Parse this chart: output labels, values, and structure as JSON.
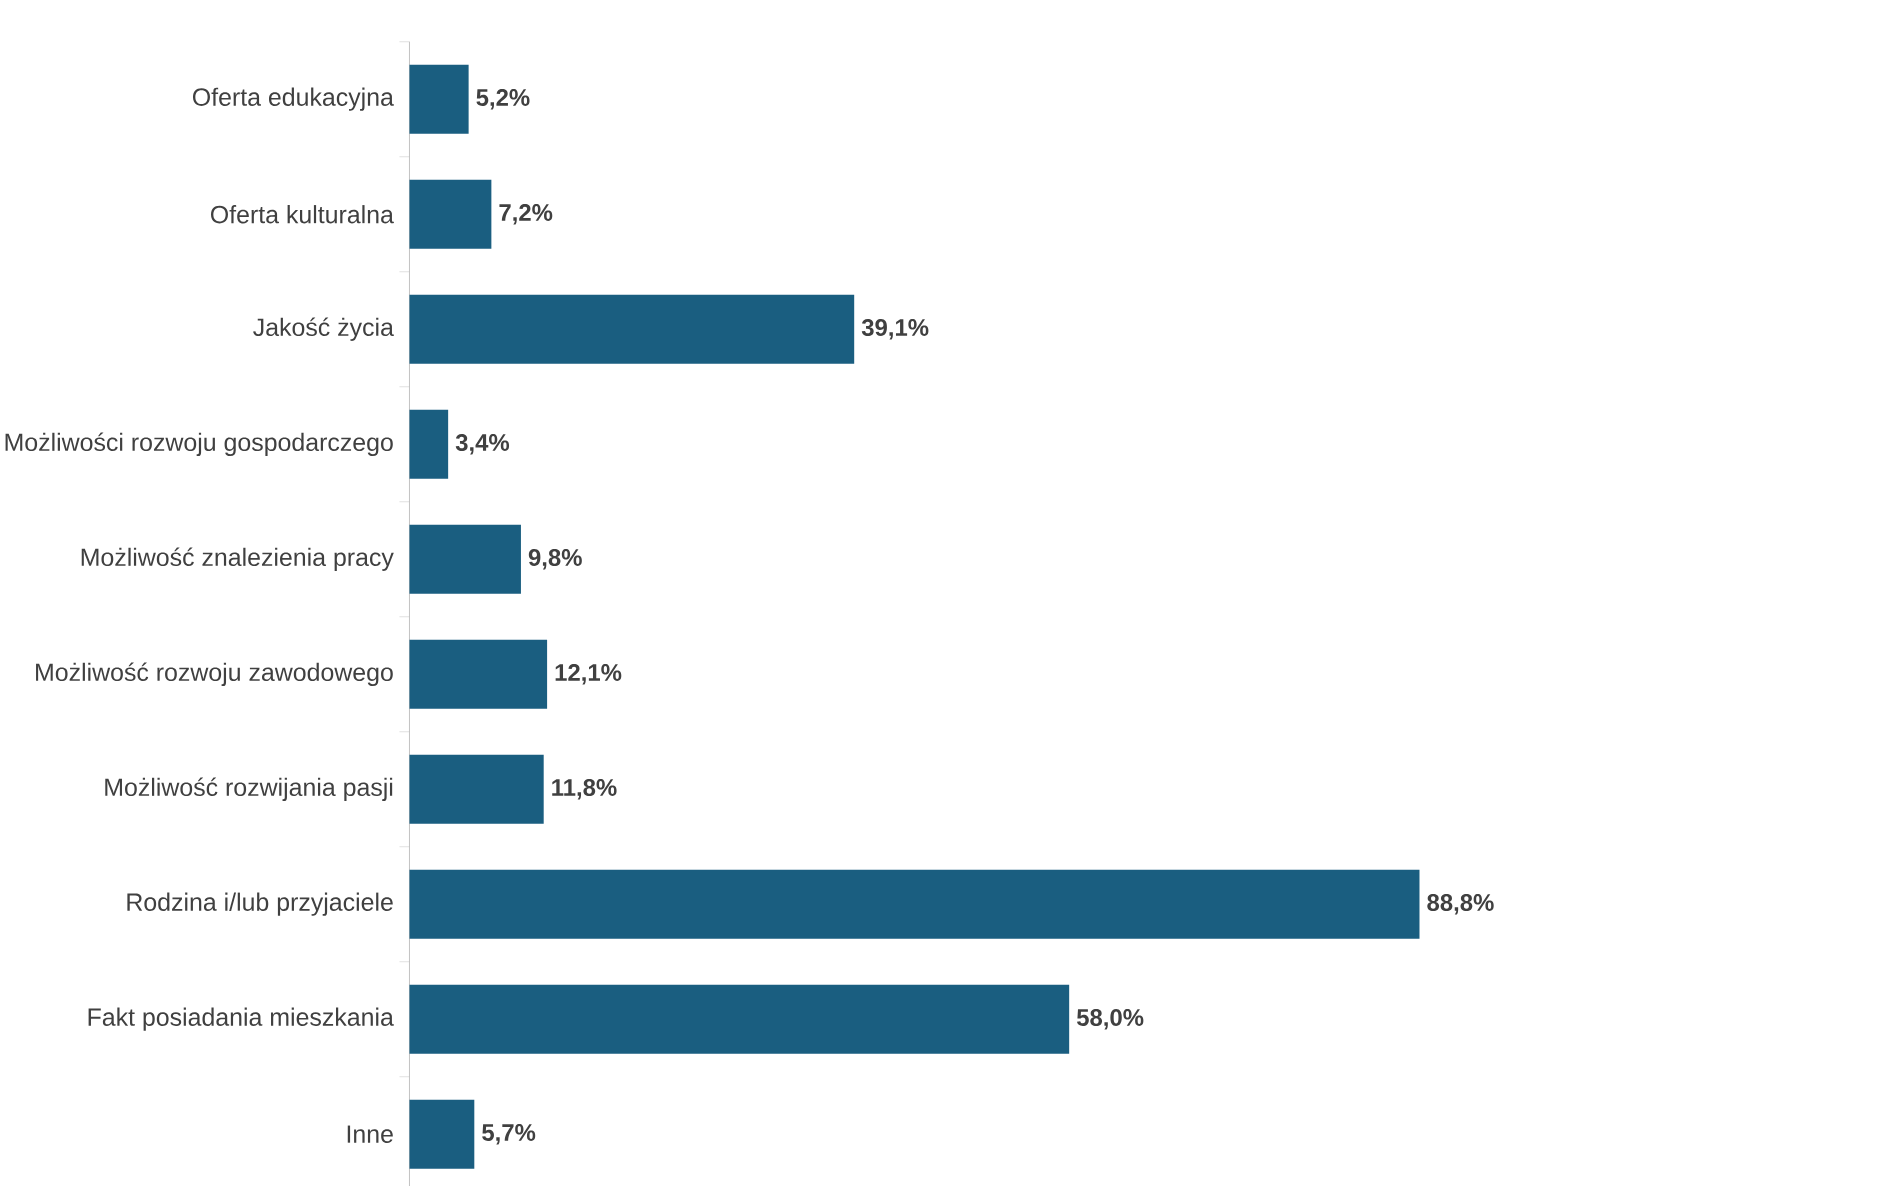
{
  "chart_data": {
    "type": "bar",
    "orientation": "horizontal",
    "categories": [
      "Oferta edukacyjna",
      "Oferta kulturalna",
      "Jakość życia",
      "Możliwości rozwoju gospodarczego",
      "Możliwość znalezienia pracy",
      "Możliwość rozwoju zawodowego",
      "Możliwość rozwijania pasji",
      "Rodzina i/lub przyjaciele",
      "Fakt posiadania mieszkania",
      "Inne"
    ],
    "values": [
      5.2,
      7.2,
      39.1,
      3.4,
      9.8,
      12.1,
      11.8,
      88.8,
      58.0,
      5.7
    ],
    "value_labels": [
      "5,2%",
      "7,2%",
      "39,1%",
      "3,4%",
      "9,8%",
      "12,1%",
      "11,8%",
      "88,8%",
      "58,0%",
      "5,7%"
    ],
    "color": "#1a5e80"
  }
}
